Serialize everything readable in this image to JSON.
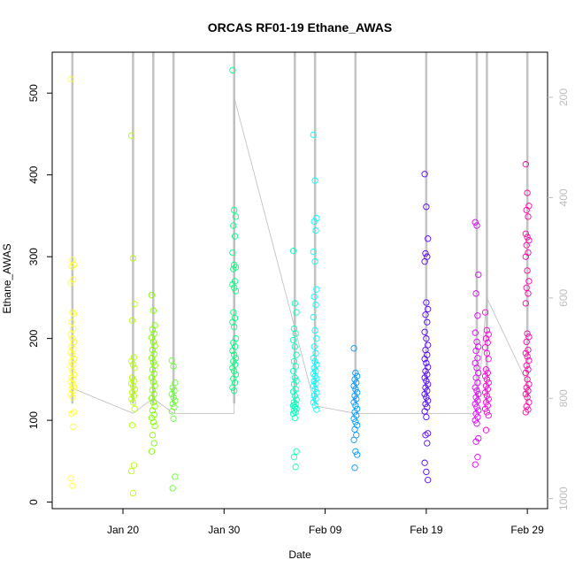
{
  "chart_data": {
    "type": "scatter",
    "title": "ORCAS RF01-19 Ethane_AWAS",
    "xlabel": "Date",
    "ylabel": "Ethane_AWAS",
    "x_axis": {
      "type": "date",
      "range": [
        "2016-01-13",
        "2016-03-02"
      ],
      "ticks": [
        "Jan 20",
        "Jan 30",
        "Feb 09",
        "Feb 19",
        "Feb 29"
      ],
      "tick_dates": [
        "2016-01-20",
        "2016-01-30",
        "2016-02-09",
        "2016-02-19",
        "2016-02-29"
      ]
    },
    "y_axis": {
      "range": [
        -8,
        550
      ],
      "ticks": [
        0,
        100,
        200,
        300,
        400,
        500
      ]
    },
    "y2_axis": {
      "reversed": true,
      "range": [
        1020,
        110
      ],
      "ticks": [
        200,
        400,
        600,
        800,
        1000
      ],
      "color": "#bdbdbd"
    },
    "grid": false,
    "legend": "none",
    "flights": [
      {
        "date": "2016-01-15",
        "color": "#ffff33",
        "values": [
          517,
          296,
          290,
          288,
          272,
          268,
          232,
          230,
          220,
          212,
          205,
          200,
          196,
          190,
          187,
          183,
          180,
          175,
          172,
          168,
          165,
          160,
          156,
          152,
          150,
          147,
          144,
          141,
          138,
          136,
          132,
          128,
          110,
          108,
          92,
          29,
          20
        ]
      },
      {
        "date": "2016-01-21",
        "color": "#b3ff00",
        "values": [
          448,
          298,
          242,
          222,
          177,
          172,
          168,
          164,
          152,
          148,
          145,
          142,
          138,
          134,
          130,
          126,
          122,
          114,
          94,
          45,
          38,
          11
        ]
      },
      {
        "date": "2016-01-23",
        "color": "#80ff00",
        "values": [
          253,
          234,
          216,
          211,
          206,
          201,
          196,
          191,
          186,
          181,
          176,
          171,
          167,
          162,
          157,
          152,
          147,
          142,
          137,
          132,
          127,
          122,
          117,
          112,
          107,
          103,
          98,
          93,
          82,
          72,
          62
        ]
      },
      {
        "date": "2016-01-25",
        "color": "#66ff33",
        "values": [
          173,
          166,
          146,
          140,
          136,
          132,
          128,
          124,
          120,
          116,
          111,
          102,
          31,
          17
        ]
      },
      {
        "date": "2016-01-31",
        "color": "#00ff7f",
        "values": [
          528,
          357,
          349,
          338,
          325,
          305,
          290,
          287,
          285,
          270,
          266,
          262,
          258,
          232,
          225,
          220,
          214,
          200,
          195,
          190,
          185,
          180,
          176,
          172,
          168,
          164,
          160,
          156,
          151,
          146,
          140,
          136
        ]
      },
      {
        "date": "2016-02-06",
        "color": "#00ffbb",
        "values": [
          307,
          243,
          232,
          212,
          206,
          198,
          190,
          180,
          172,
          166,
          160,
          152,
          148,
          144,
          138,
          135,
          130,
          125,
          122,
          120,
          118,
          116,
          114,
          112,
          110,
          108,
          103,
          62,
          55,
          43
        ]
      },
      {
        "date": "2016-02-08",
        "color": "#00ffff",
        "values": [
          449,
          393,
          347,
          343,
          332,
          306,
          294,
          260,
          251,
          241,
          226,
          210,
          200,
          190,
          182,
          176,
          172,
          168,
          164,
          160,
          157,
          154,
          151,
          148,
          145,
          142,
          138,
          134,
          130,
          126,
          122,
          118,
          113
        ]
      },
      {
        "date": "2016-02-12",
        "color": "#0099ff",
        "values": [
          188,
          158,
          154,
          150,
          146,
          142,
          138,
          134,
          130,
          126,
          122,
          118,
          114,
          110,
          106,
          102,
          98,
          94,
          89,
          82,
          76,
          62,
          58,
          42
        ]
      },
      {
        "date": "2016-02-19",
        "color": "#5500ff",
        "values": [
          401,
          361,
          322,
          304,
          300,
          294,
          244,
          236,
          229,
          220,
          208,
          200,
          192,
          186,
          180,
          175,
          170,
          165,
          160,
          156,
          152,
          148,
          144,
          140,
          136,
          132,
          128,
          124,
          120,
          116,
          111,
          104,
          84,
          82,
          72,
          48,
          37,
          27
        ]
      },
      {
        "date": "2016-02-24",
        "color": "#dd00ff",
        "values": [
          342,
          338,
          278,
          255,
          228,
          207,
          196,
          190,
          185,
          176,
          170,
          164,
          158,
          152,
          146,
          140,
          136,
          132,
          128,
          124,
          120,
          116,
          112,
          108,
          104,
          100,
          96,
          78,
          74,
          55,
          46
        ]
      },
      {
        "date": "2016-02-25",
        "color": "#ff00dd",
        "values": [
          232,
          210,
          205,
          200,
          195,
          189,
          182,
          175,
          162,
          158,
          154,
          150,
          146,
          142,
          138,
          134,
          130,
          126,
          122,
          118,
          114,
          110,
          106,
          88
        ]
      },
      {
        "date": "2016-02-29",
        "color": "#ff00aa",
        "values": [
          413,
          378,
          362,
          357,
          349,
          328,
          324,
          320,
          314,
          305,
          300,
          283,
          270,
          262,
          255,
          243,
          206,
          202,
          196,
          186,
          182,
          178,
          173,
          167,
          162,
          158,
          150,
          144,
          140,
          136,
          132,
          128,
          122,
          117,
          113,
          110
        ]
      }
    ],
    "pressure_track": [
      {
        "date": "2016-01-15",
        "pressure": 780
      },
      {
        "date": "2016-01-21",
        "pressure": 830
      },
      {
        "date": "2016-01-23",
        "pressure": 800
      },
      {
        "date": "2016-01-25",
        "pressure": 830
      },
      {
        "date": "2016-01-31",
        "pressure": 830
      },
      {
        "date": "2016-01-31",
        "pressure": 200
      },
      {
        "date": "2016-02-06",
        "pressure": 660
      },
      {
        "date": "2016-02-08",
        "pressure": 815
      },
      {
        "date": "2016-02-12",
        "pressure": 830
      },
      {
        "date": "2016-02-19",
        "pressure": 830
      },
      {
        "date": "2016-02-24",
        "pressure": 830
      },
      {
        "date": "2016-02-25",
        "pressure": 600
      },
      {
        "date": "2016-02-29",
        "pressure": 770
      }
    ],
    "pressure_color": "#bdbdbd"
  }
}
